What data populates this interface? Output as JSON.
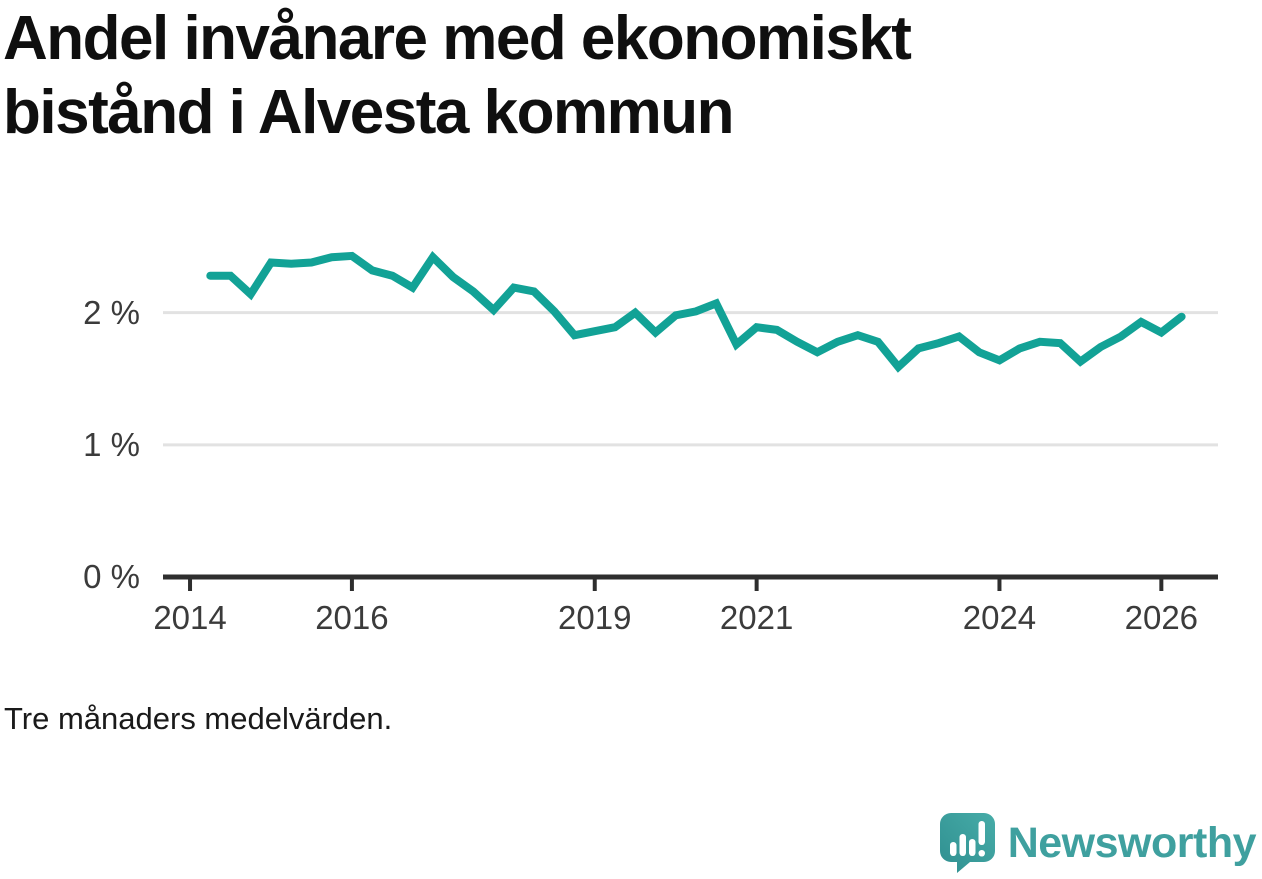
{
  "title": "Andel invånare med ekonomiskt bistånd i Alvesta kommun",
  "title_lines": [
    "Andel invånare med ekonomiskt",
    "bistånd i Alvesta kommun"
  ],
  "caption": "Tre månaders medelvärden.",
  "logo": {
    "text": "Newsworthy"
  },
  "colors": {
    "line": "#12a296",
    "grid": "#e2e2e2",
    "axis": "#2e2e2e",
    "tick_text": "#3b3b3b",
    "title_text": "#0f0f0f",
    "logo_teal": "#3fa09f",
    "background": "#ffffff"
  },
  "chart_data": {
    "type": "line",
    "title": "Andel invånare med ekonomiskt bistånd i Alvesta kommun",
    "subtitle": "Tre månaders medelvärden.",
    "xlabel": "",
    "ylabel": "",
    "unit": "%",
    "grid": "horizontal",
    "legend": "none",
    "xlim": [
      2013.666,
      2026.7
    ],
    "ylim": [
      0,
      2.55
    ],
    "x_ticks": [
      {
        "value": 2014,
        "label": "2014"
      },
      {
        "value": 2016,
        "label": "2016"
      },
      {
        "value": 2019,
        "label": "2019"
      },
      {
        "value": 2021,
        "label": "2021"
      },
      {
        "value": 2024,
        "label": "2024"
      },
      {
        "value": 2026,
        "label": "2026"
      }
    ],
    "y_ticks": [
      {
        "value": 0,
        "label": "0 %"
      },
      {
        "value": 1,
        "label": "1 %"
      },
      {
        "value": 2,
        "label": "2 %"
      }
    ],
    "series": [
      {
        "name": "Andel invånare med ekonomiskt bistånd",
        "x": [
          2014.25,
          2014.5,
          2014.75,
          2015.0,
          2015.25,
          2015.5,
          2015.75,
          2016.0,
          2016.25,
          2016.5,
          2016.75,
          2017.0,
          2017.25,
          2017.5,
          2017.75,
          2018.0,
          2018.25,
          2018.5,
          2018.75,
          2019.0,
          2019.25,
          2019.5,
          2019.75,
          2020.0,
          2020.25,
          2020.5,
          2020.75,
          2021.0,
          2021.25,
          2021.5,
          2021.75,
          2022.0,
          2022.25,
          2022.5,
          2022.75,
          2023.0,
          2023.25,
          2023.5,
          2023.75,
          2024.0,
          2024.25,
          2024.5,
          2024.75,
          2025.0,
          2025.25,
          2025.5,
          2025.75,
          2026.0,
          2026.25
        ],
        "values": [
          2.28,
          2.28,
          2.14,
          2.38,
          2.37,
          2.38,
          2.42,
          2.43,
          2.32,
          2.28,
          2.19,
          2.42,
          2.27,
          2.16,
          2.02,
          2.19,
          2.16,
          2.01,
          1.83,
          1.86,
          1.89,
          2.0,
          1.85,
          1.98,
          2.01,
          2.07,
          1.76,
          1.89,
          1.87,
          1.78,
          1.7,
          1.78,
          1.83,
          1.78,
          1.59,
          1.73,
          1.77,
          1.82,
          1.7,
          1.64,
          1.73,
          1.78,
          1.77,
          1.63,
          1.74,
          1.82,
          1.93,
          1.85,
          1.97
        ]
      }
    ]
  }
}
